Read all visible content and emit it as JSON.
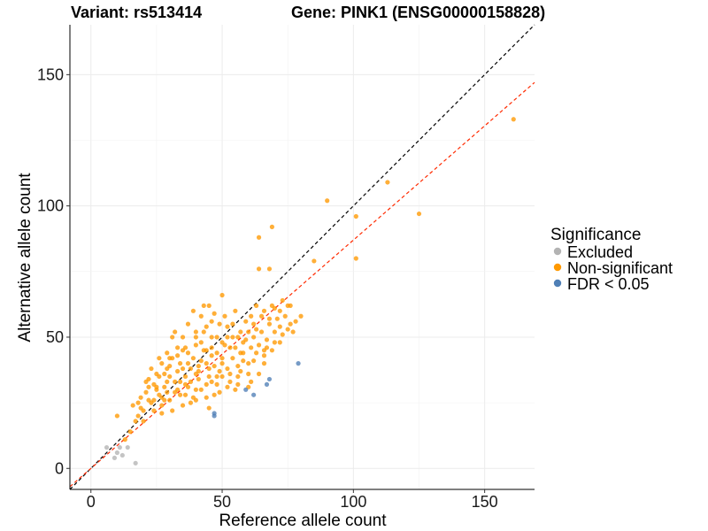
{
  "chart_data": {
    "type": "scatter",
    "title_left": "Variant: rs513414",
    "title_right": "Gene: PINK1 (ENSG00000158828)",
    "xlabel": "Reference allele count",
    "ylabel": "Alternative allele count",
    "xlim": [
      -8,
      169
    ],
    "ylim": [
      -8,
      169
    ],
    "xticks": [
      0,
      50,
      100,
      150
    ],
    "yticks": [
      0,
      50,
      100,
      150
    ],
    "grid": true,
    "legend": {
      "title": "Significance",
      "position": "right",
      "entries": [
        {
          "label": "Excluded",
          "color": "#b3b3b3"
        },
        {
          "label": "Non-significant",
          "color": "#ff9900"
        },
        {
          "label": "FDR < 0.05",
          "color": "#4f7fb6"
        }
      ]
    },
    "reference_lines": [
      {
        "slope": 1.0,
        "intercept": 0,
        "color": "#000000",
        "style": "dashed"
      },
      {
        "slope": 0.87,
        "intercept": 0,
        "color": "#ff2a00",
        "style": "dashed"
      }
    ],
    "series": [
      {
        "name": "Excluded",
        "color": "#b3b3b3",
        "points": [
          [
            6,
            8
          ],
          [
            9,
            4
          ],
          [
            11,
            8
          ],
          [
            12,
            5
          ],
          [
            14,
            8
          ],
          [
            17,
            2
          ],
          [
            10,
            6
          ]
        ]
      },
      {
        "name": "Non-significant",
        "color": "#ff9900",
        "points": [
          [
            161,
            133
          ],
          [
            113,
            109
          ],
          [
            90,
            102
          ],
          [
            101,
            96
          ],
          [
            125,
            97
          ],
          [
            101,
            80
          ],
          [
            69,
            92
          ],
          [
            64,
            88
          ],
          [
            85,
            79
          ],
          [
            64,
            76
          ],
          [
            68,
            76
          ],
          [
            73,
            64
          ],
          [
            75,
            62
          ],
          [
            70,
            61
          ],
          [
            62,
            55
          ],
          [
            80,
            58
          ],
          [
            77,
            52
          ],
          [
            72,
            48
          ],
          [
            66,
            45
          ],
          [
            55,
            60
          ],
          [
            50,
            66
          ],
          [
            45,
            62
          ],
          [
            42,
            58
          ],
          [
            40,
            52
          ],
          [
            35,
            45
          ],
          [
            30,
            42
          ],
          [
            28,
            36
          ],
          [
            25,
            30
          ],
          [
            22,
            26
          ],
          [
            20,
            22
          ],
          [
            18,
            20
          ],
          [
            15,
            14
          ],
          [
            13,
            11
          ],
          [
            10,
            20
          ],
          [
            48,
            44
          ],
          [
            52,
            38
          ],
          [
            56,
            35
          ],
          [
            60,
            40
          ],
          [
            47,
            28
          ],
          [
            38,
            25
          ],
          [
            33,
            30
          ],
          [
            58,
            48
          ],
          [
            44,
            40
          ],
          [
            36,
            35
          ],
          [
            27,
            24
          ],
          [
            62,
            50
          ],
          [
            54,
            50
          ],
          [
            46,
            50
          ],
          [
            40,
            30
          ],
          [
            50,
            42
          ],
          [
            65,
            58
          ],
          [
            68,
            55
          ],
          [
            42,
            48
          ],
          [
            37,
            55
          ],
          [
            31,
            50
          ],
          [
            29,
            38
          ],
          [
            24,
            32
          ],
          [
            34,
            40
          ],
          [
            45,
            35
          ],
          [
            53,
            46
          ],
          [
            57,
            44
          ],
          [
            61,
            46
          ],
          [
            66,
            40
          ],
          [
            70,
            52
          ],
          [
            63,
            62
          ],
          [
            59,
            56
          ],
          [
            49,
            55
          ],
          [
            43,
            45
          ],
          [
            39,
            42
          ],
          [
            35,
            38
          ],
          [
            32,
            33
          ],
          [
            26,
            28
          ],
          [
            23,
            25
          ],
          [
            21,
            29
          ],
          [
            19,
            27
          ],
          [
            16,
            24
          ],
          [
            41,
            37
          ],
          [
            48,
            32
          ],
          [
            55,
            30
          ],
          [
            60,
            36
          ],
          [
            45,
            23
          ],
          [
            40,
            26
          ],
          [
            36,
            28
          ],
          [
            30,
            26
          ],
          [
            28,
            31
          ],
          [
            47,
            39
          ],
          [
            51,
            47
          ],
          [
            58,
            41
          ],
          [
            64,
            47
          ],
          [
            67,
            49
          ],
          [
            71,
            57
          ],
          [
            74,
            58
          ],
          [
            76,
            55
          ],
          [
            72,
            54
          ],
          [
            69,
            62
          ],
          [
            66,
            60
          ],
          [
            63,
            53
          ],
          [
            57,
            52
          ],
          [
            52,
            54
          ],
          [
            46,
            56
          ],
          [
            43,
            62
          ],
          [
            39,
            60
          ],
          [
            33,
            46
          ],
          [
            31,
            42
          ],
          [
            27,
            40
          ],
          [
            25,
            36
          ],
          [
            22,
            34
          ],
          [
            38,
            33
          ],
          [
            42,
            30
          ],
          [
            44,
            27
          ],
          [
            49,
            29
          ],
          [
            53,
            33
          ],
          [
            61,
            33
          ],
          [
            64,
            36
          ],
          [
            56,
            39
          ],
          [
            50,
            35
          ],
          [
            46,
            33
          ],
          [
            41,
            34
          ],
          [
            37,
            31
          ],
          [
            34,
            28
          ],
          [
            29,
            29
          ],
          [
            27,
            27
          ],
          [
            24,
            22
          ],
          [
            20,
            18
          ],
          [
            17,
            18
          ],
          [
            44,
            45
          ],
          [
            48,
            50
          ],
          [
            52,
            50
          ],
          [
            55,
            46
          ],
          [
            59,
            49
          ],
          [
            63,
            44
          ],
          [
            67,
            46
          ],
          [
            70,
            48
          ],
          [
            73,
            51
          ],
          [
            75,
            53
          ],
          [
            78,
            56
          ],
          [
            60,
            52
          ],
          [
            54,
            55
          ],
          [
            51,
            58
          ],
          [
            47,
            59
          ],
          [
            43,
            52
          ],
          [
            40,
            47
          ],
          [
            37,
            44
          ],
          [
            35,
            50
          ],
          [
            32,
            52
          ],
          [
            29,
            44
          ],
          [
            26,
            42
          ],
          [
            23,
            38
          ],
          [
            21,
            33
          ],
          [
            18,
            25
          ],
          [
            30,
            35
          ],
          [
            34,
            33
          ],
          [
            38,
            38
          ],
          [
            42,
            41
          ],
          [
            46,
            43
          ],
          [
            50,
            40
          ],
          [
            54,
            42
          ],
          [
            58,
            44
          ],
          [
            62,
            41
          ],
          [
            66,
            43
          ],
          [
            69,
            45
          ],
          [
            57,
            37
          ],
          [
            53,
            36
          ],
          [
            49,
            37
          ],
          [
            45,
            38
          ],
          [
            41,
            39
          ],
          [
            37,
            40
          ],
          [
            33,
            37
          ],
          [
            29,
            33
          ],
          [
            25,
            31
          ],
          [
            44,
            32
          ],
          [
            48,
            35
          ],
          [
            52,
            31
          ],
          [
            56,
            32
          ],
          [
            60,
            31
          ],
          [
            39,
            27
          ],
          [
            35,
            24
          ],
          [
            31,
            22
          ],
          [
            27,
            21
          ],
          [
            40,
            36
          ],
          [
            36,
            32
          ],
          [
            32,
            29
          ],
          [
            28,
            26
          ],
          [
            24,
            26
          ],
          [
            46,
            46
          ],
          [
            50,
            48
          ],
          [
            56,
            50
          ],
          [
            61,
            58
          ],
          [
            65,
            52
          ],
          [
            68,
            57
          ],
          [
            72,
            60
          ],
          [
            76,
            62
          ],
          [
            44,
            54
          ],
          [
            40,
            50
          ],
          [
            36,
            46
          ],
          [
            33,
            43
          ],
          [
            30,
            39
          ],
          [
            26,
            35
          ],
          [
            22,
            31
          ],
          [
            19,
            23
          ]
        ]
      },
      {
        "name": "FDR < 0.05",
        "color": "#4f7fb6",
        "points": [
          [
            79,
            40
          ],
          [
            68,
            34
          ],
          [
            67,
            32
          ],
          [
            59,
            30
          ],
          [
            62,
            28
          ],
          [
            47,
            21
          ],
          [
            47,
            20
          ]
        ]
      }
    ]
  }
}
